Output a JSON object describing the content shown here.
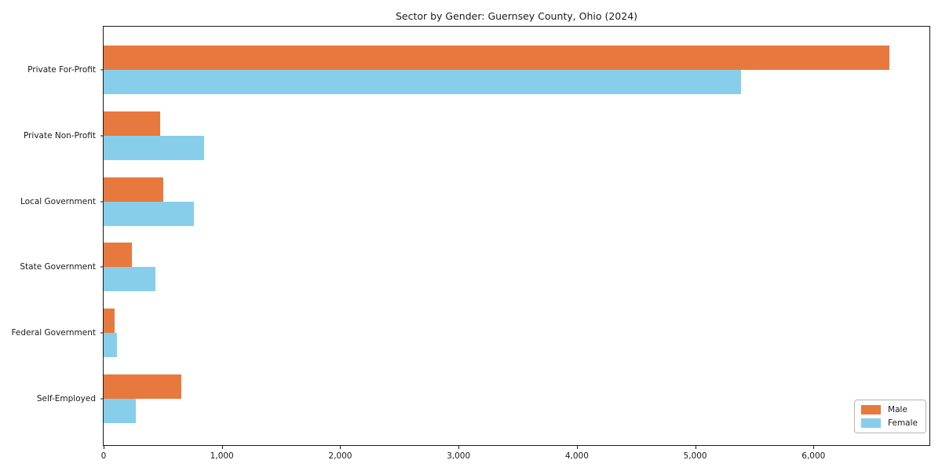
{
  "chart_data": {
    "type": "bar",
    "orientation": "horizontal",
    "title": "Sector by Gender: Guernsey County, Ohio (2024)",
    "categories": [
      "Private For-Profit",
      "Private Non-Profit",
      "Local Government",
      "State Government",
      "Federal Government",
      "Self-Employed"
    ],
    "series": [
      {
        "name": "Male",
        "color": "#e8793e",
        "values": [
          6640,
          480,
          505,
          240,
          90,
          660
        ]
      },
      {
        "name": "Female",
        "color": "#87ceeb",
        "values": [
          5390,
          850,
          765,
          440,
          115,
          275
        ]
      }
    ],
    "xlim": [
      0,
      6980
    ],
    "xticks": [
      0,
      1000,
      2000,
      3000,
      4000,
      5000,
      6000
    ],
    "xtick_labels": [
      "0",
      "1,000",
      "2,000",
      "3,000",
      "4,000",
      "5,000",
      "6,000"
    ],
    "xlabel": "",
    "ylabel": "",
    "grid": false,
    "legend_position": "lower right",
    "colors": {
      "axis": "#1a1a1a",
      "background": "#ffffff",
      "legend_border": "#b5b5b5"
    }
  }
}
